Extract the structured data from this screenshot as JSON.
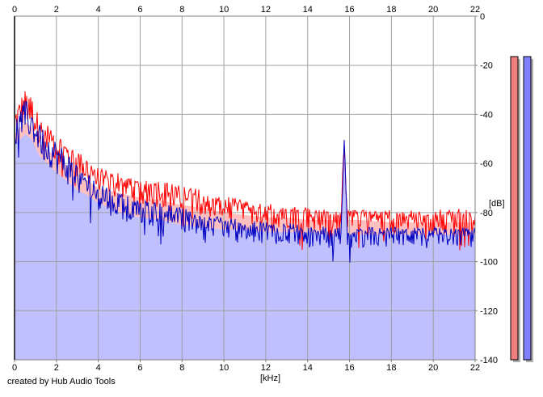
{
  "footer": {
    "credit": "created by Hub Audio Tools"
  },
  "chart_data": {
    "type": "area",
    "title": "",
    "xlabel": "[kHz]",
    "ylabel": "[dB]",
    "xlim": [
      0,
      22
    ],
    "ylim": [
      -140,
      0
    ],
    "x_ticks": [
      0,
      2,
      4,
      6,
      8,
      10,
      12,
      14,
      16,
      18,
      20,
      22
    ],
    "x_tick_labels": [
      "0",
      "2",
      "4",
      "6",
      "8",
      "10",
      "12",
      "14",
      "16",
      "18",
      "20",
      "22"
    ],
    "y_ticks": [
      0,
      -20,
      -40,
      -60,
      -80,
      -100,
      -120,
      -140
    ],
    "y_tick_labels": [
      "0",
      "-20",
      "-40",
      "-60",
      "-80",
      "-100",
      "-120",
      "-140"
    ],
    "grid": true,
    "legend": "none",
    "series": [
      {
        "color": "#ff0000",
        "fill": "#ffc0c0",
        "x": [
          0,
          0.3,
          0.5,
          0.8,
          1.2,
          1.8,
          2.5,
          3.0,
          3.5,
          4.0,
          5.0,
          6.0,
          7.0,
          8.0,
          9.0,
          10.0,
          11.0,
          12.0,
          13.0,
          14.0,
          15.0,
          15.6,
          15.75,
          15.9,
          16.5,
          18.0,
          20.0,
          22.0
        ],
        "peak": [
          -40,
          -33,
          -30,
          -32,
          -42,
          -46,
          -52,
          -55,
          -58,
          -62,
          -64,
          -66,
          -67,
          -69,
          -71,
          -73,
          -75,
          -76,
          -77,
          -78,
          -79,
          -79,
          -46,
          -79,
          -79,
          -79,
          -79,
          -78
        ],
        "mean": [
          -48,
          -45,
          -43,
          -45,
          -52,
          -56,
          -61,
          -64,
          -67,
          -70,
          -72,
          -74,
          -75,
          -77,
          -78,
          -80,
          -81,
          -82,
          -82,
          -83,
          -83,
          -83,
          -50,
          -83,
          -83,
          -84,
          -84,
          -84
        ]
      },
      {
        "color": "#0000c0",
        "fill": "#c0c0ff",
        "x": [
          0,
          0.3,
          0.5,
          0.8,
          1.2,
          1.8,
          2.5,
          3.0,
          3.5,
          4.0,
          5.0,
          6.0,
          7.0,
          8.0,
          9.0,
          10.0,
          11.0,
          12.0,
          13.0,
          14.0,
          15.0,
          15.6,
          15.75,
          15.9,
          16.5,
          18.0,
          20.0,
          22.0
        ],
        "peak": [
          -41,
          -37,
          -34,
          -37,
          -44,
          -49,
          -56,
          -60,
          -64,
          -68,
          -72,
          -75,
          -76,
          -78,
          -80,
          -82,
          -83,
          -84,
          -84,
          -85,
          -86,
          -86,
          -48,
          -86,
          -86,
          -86,
          -86,
          -86
        ],
        "mean": [
          -52,
          -50,
          -48,
          -50,
          -57,
          -62,
          -67,
          -71,
          -73,
          -76,
          -80,
          -82,
          -83,
          -85,
          -86,
          -87,
          -87,
          -88,
          -88,
          -88,
          -89,
          -89,
          -55,
          -89,
          -89,
          -89,
          -89,
          -89
        ]
      }
    ],
    "level_meters": [
      {
        "color": "#f08080",
        "level": 0
      },
      {
        "color": "#8080ff",
        "level": 0
      }
    ]
  }
}
